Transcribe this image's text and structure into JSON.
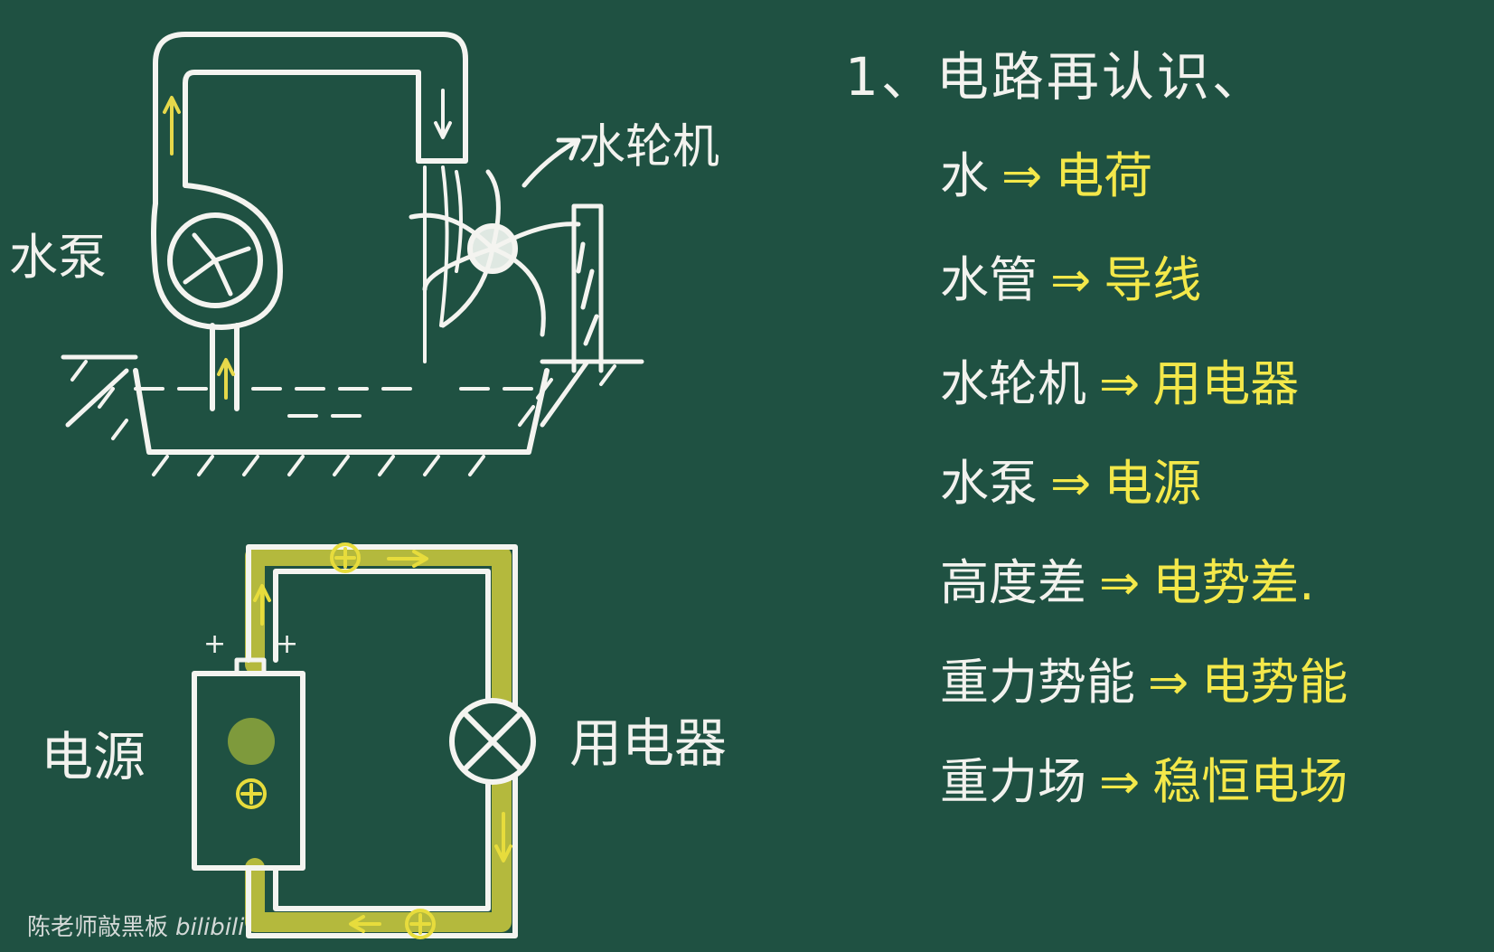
{
  "heading": "1、电路再认识、",
  "diagram_labels": {
    "turbine": "水轮机",
    "pump": "水泵",
    "source": "电源",
    "appliance": "用电器",
    "source_plus_left": "+",
    "source_plus_right": "+"
  },
  "analogies": [
    {
      "water": "水",
      "arrow": "⇒",
      "electric": "电荷"
    },
    {
      "water": "水管",
      "arrow": "⇒",
      "electric": "导线"
    },
    {
      "water": "水轮机",
      "arrow": "⇒",
      "electric": "用电器"
    },
    {
      "water": "水泵",
      "arrow": "⇒",
      "electric": "电源"
    },
    {
      "water": "高度差",
      "arrow": "⇒",
      "electric": "电势差."
    },
    {
      "water": "重力势能",
      "arrow": "⇒",
      "electric": "电势能"
    },
    {
      "water": "重力场",
      "arrow": "⇒",
      "electric": "稳恒电场"
    }
  ],
  "watermark": {
    "channel": "陈老师敲黑板",
    "brand": "bilibili"
  },
  "colors": {
    "board": "#1f5142",
    "chalk": "#f2f2ee",
    "yellow_chalk": "#f3e84a"
  }
}
